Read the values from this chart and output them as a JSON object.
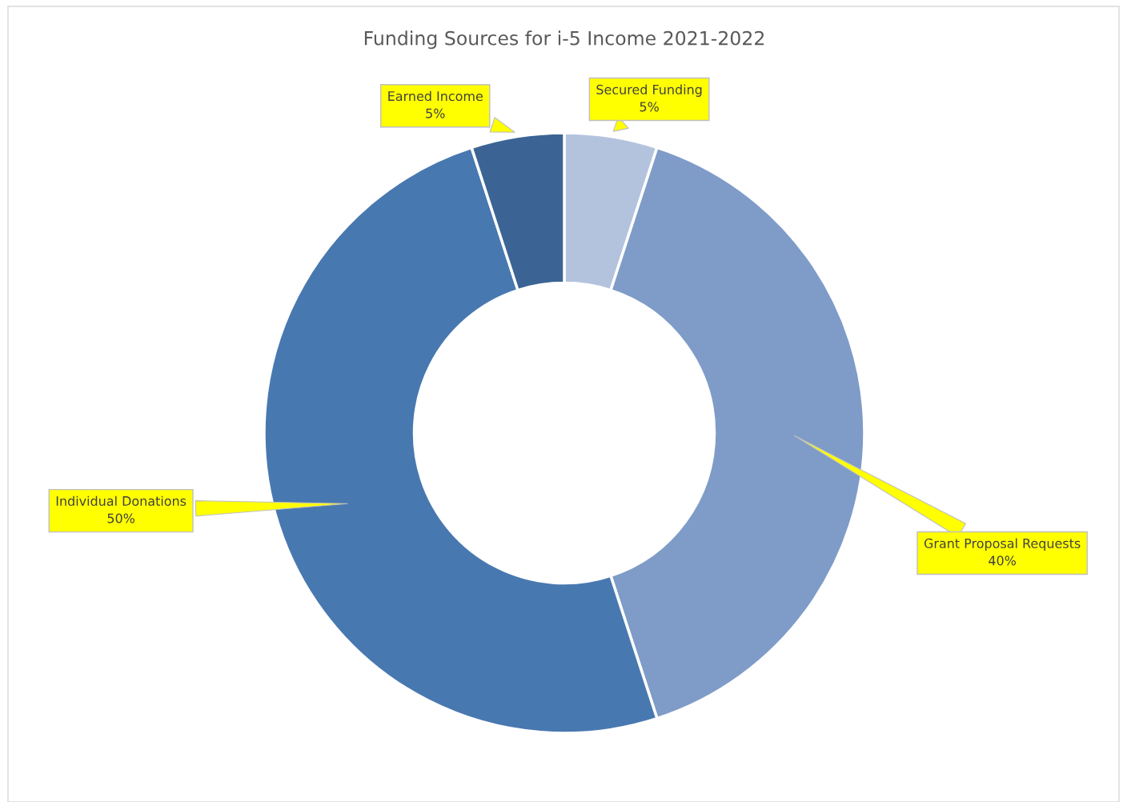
{
  "chart_data": {
    "type": "donut",
    "title": "Funding Sources for i-5 Income 2021-2022",
    "categories": [
      "Secured Funding",
      "Grant Proposal Requests",
      "Individual Donations",
      "Earned Income"
    ],
    "values": [
      5,
      40,
      50,
      5
    ],
    "colors": [
      "#b4c3dd",
      "#7f9cc8",
      "#4878b0",
      "#3b6494"
    ],
    "value_labels": [
      "5%",
      "40%",
      "50%",
      "5%"
    ],
    "legend": false
  }
}
